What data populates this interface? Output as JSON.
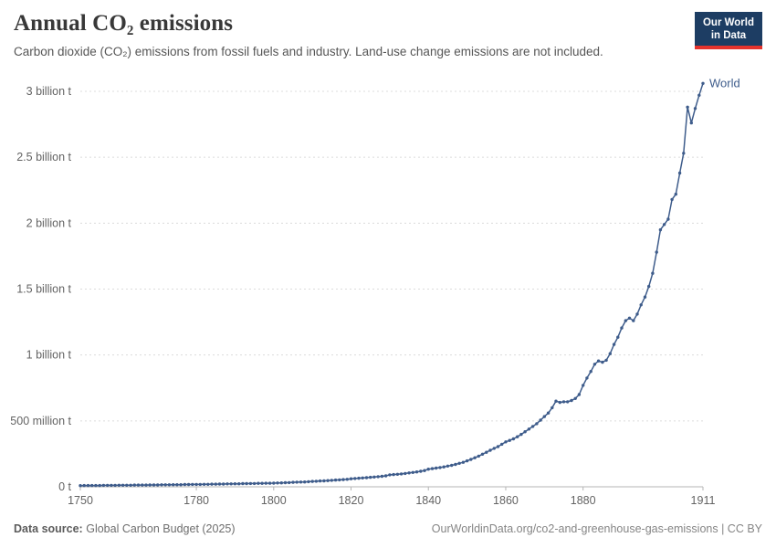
{
  "header": {
    "title": "Annual CO₂ emissions",
    "subtitle": "Carbon dioxide (CO₂) emissions from fossil fuels and industry. Land-use change emissions are not included.",
    "logo": {
      "line1": "Our World",
      "line2": "in Data"
    }
  },
  "footer": {
    "source_label": "Data source:",
    "source_value": "Global Carbon Budget (2025)",
    "credit": "OurWorldinData.org/co2-and-greenhouse-gas-emissions | CC BY"
  },
  "colors": {
    "line": "#3e5c8b",
    "logo_bg": "#1d3d63",
    "logo_accent": "#e5332d",
    "gridline": "#dcdcdc",
    "tick_text": "#636363"
  },
  "chart_data": {
    "type": "line",
    "title": "Annual CO₂ emissions",
    "series_name": "World",
    "unit": "tonnes of CO₂",
    "x_start": 1750,
    "x_end": 1911,
    "ylim_mt": [
      0,
      3000
    ],
    "grid": true,
    "legend_position": "end-of-line",
    "x_ticks": [
      1750,
      1780,
      1800,
      1820,
      1840,
      1860,
      1880,
      1911
    ],
    "y_ticks": [
      {
        "value_mt": 0,
        "label": "0 t"
      },
      {
        "value_mt": 500,
        "label": "500 million t"
      },
      {
        "value_mt": 1000,
        "label": "1 billion t"
      },
      {
        "value_mt": 1500,
        "label": "1.5 billion t"
      },
      {
        "value_mt": 2000,
        "label": "2 billion t"
      },
      {
        "value_mt": 2500,
        "label": "2.5 billion t"
      },
      {
        "value_mt": 3000,
        "label": "3 billion t"
      }
    ],
    "values_mt": [
      9,
      10,
      10,
      10,
      10,
      10,
      11,
      11,
      11,
      11,
      12,
      12,
      12,
      12,
      13,
      13,
      13,
      13,
      14,
      14,
      14,
      15,
      15,
      15,
      16,
      16,
      16,
      17,
      17,
      18,
      18,
      18,
      19,
      19,
      20,
      20,
      21,
      21,
      22,
      22,
      23,
      23,
      24,
      24,
      25,
      25,
      26,
      26,
      27,
      27,
      28,
      29,
      30,
      31,
      32,
      34,
      35,
      36,
      37,
      39,
      41,
      42,
      44,
      45,
      47,
      49,
      51,
      53,
      55,
      57,
      61,
      63,
      65,
      67,
      69,
      72,
      74,
      77,
      80,
      83,
      91,
      93,
      95,
      98,
      101,
      105,
      109,
      113,
      118,
      123,
      134,
      138,
      142,
      146,
      151,
      157,
      163,
      170,
      178,
      186,
      197,
      208,
      220,
      233,
      247,
      262,
      277,
      292,
      305,
      323,
      341,
      352,
      364,
      380,
      398,
      418,
      438,
      458,
      479,
      506,
      533,
      560,
      600,
      650,
      640,
      645,
      645,
      655,
      670,
      700,
      770,
      825,
      875,
      930,
      955,
      945,
      960,
      1010,
      1080,
      1135,
      1205,
      1260,
      1280,
      1260,
      1310,
      1380,
      1440,
      1520,
      1620,
      1780,
      1950,
      1990,
      2030,
      2180,
      2220,
      2380,
      2530,
      2880,
      2760,
      2870,
      2970,
      3060
    ]
  }
}
